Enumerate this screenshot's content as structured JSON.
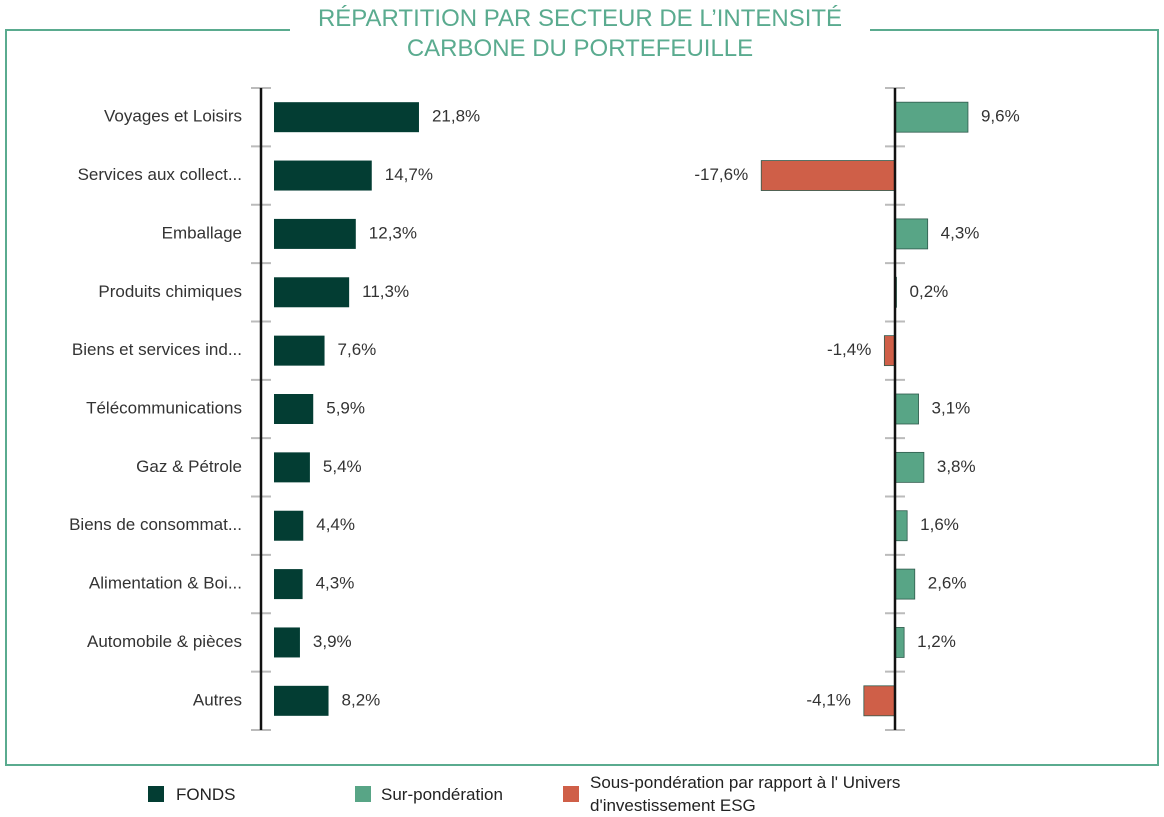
{
  "chart_data": [
    {
      "type": "bar",
      "orientation": "horizontal",
      "title": "RÉPARTITION PAR SECTEUR DE L’INTENSITÉ CARBONE DU PORTEFEUILLE",
      "categories": [
        "Voyages et Loisirs",
        "Services aux collect...",
        "Emballage",
        "Produits chimiques",
        "Biens et services ind...",
        "Télécommunications",
        "Gaz & Pétrole",
        "Biens de consommat...",
        "Alimentation & Boi...",
        "Automobile & pièces",
        "Autres"
      ],
      "xlim": [
        0,
        30
      ],
      "series": [
        {
          "name": "FONDS",
          "color": "#033d33",
          "values": [
            21.8,
            14.7,
            12.3,
            11.3,
            7.6,
            5.9,
            5.4,
            4.4,
            4.3,
            3.9,
            8.2
          ],
          "value_labels": [
            "21,8%",
            "14,7%",
            "12,3%",
            "11,3%",
            "7,6%",
            "5,9%",
            "5,4%",
            "4,4%",
            "4,3%",
            "3,9%",
            "8,2%"
          ]
        }
      ]
    },
    {
      "type": "bar",
      "orientation": "horizontal",
      "xlim": [
        -20,
        15
      ],
      "series": [
        {
          "name": "Sur-pondération",
          "color": "#58a586",
          "values": [
            9.6,
            null,
            4.3,
            0.2,
            null,
            3.1,
            3.8,
            1.6,
            2.6,
            1.2,
            null
          ],
          "value_labels": [
            "9,6%",
            null,
            "4,3%",
            "0,2%",
            null,
            "3,1%",
            "3,8%",
            "1,6%",
            "2,6%",
            "1,2%",
            null
          ]
        },
        {
          "name": "Sous-pondération par rapport à l' Univers d'investissement ESG",
          "color": "#cf5f48",
          "values": [
            null,
            -17.6,
            null,
            null,
            -1.4,
            null,
            null,
            null,
            null,
            null,
            -4.1
          ],
          "value_labels": [
            null,
            "-17,6%",
            null,
            null,
            "-1,4%",
            null,
            null,
            null,
            null,
            null,
            "-4,1%"
          ]
        }
      ]
    }
  ]
}
